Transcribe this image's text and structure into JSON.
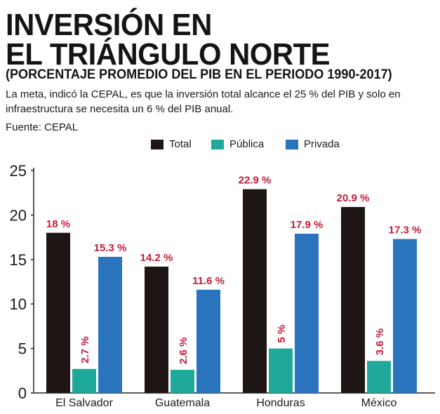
{
  "header": {
    "title_line1": "INVERSIÓN EN",
    "title_line2": "EL TRIÁNGULO NORTE",
    "subtitle": "(PORCENTAJE PROMEDIO DEL PIB  EN EL PERIODO 1990-2017)",
    "description": "La meta, indicó la CEPAL, es que la inversión total alcance el 25 % del PIB y solo en infraestructura se necesita un 6 % del PIB anual.",
    "source": "Fuente: CEPAL"
  },
  "colors": {
    "total": "#1e1614",
    "publica": "#1fa99a",
    "privada": "#2a74bd",
    "value_label": "#c41a3a"
  },
  "chart_data": {
    "type": "bar",
    "title": "INVERSIÓN EN EL TRIÁNGULO NORTE",
    "subtitle": "(PORCENTAJE PROMEDIO DEL PIB  EN EL PERIODO 1990-2017)",
    "categories": [
      "El Salvador",
      "Guatemala",
      "Honduras",
      "México"
    ],
    "series": [
      {
        "name": "Total",
        "values": [
          18,
          14.2,
          22.9,
          20.9
        ],
        "labels": [
          "18 %",
          "14.2 %",
          "22.9 %",
          "20.9 %"
        ]
      },
      {
        "name": "Pública",
        "values": [
          2.7,
          2.6,
          5,
          3.6
        ],
        "labels": [
          "2.7 %",
          "2.6 %",
          "5 %",
          "3.6 %"
        ]
      },
      {
        "name": "Privada",
        "values": [
          15.3,
          11.6,
          17.9,
          17.3
        ],
        "labels": [
          "15.3 %",
          "11.6 %",
          "17.9 %",
          "17.3 %"
        ]
      }
    ],
    "yticks": [
      "0",
      "5",
      "10",
      "15",
      "20",
      "25"
    ],
    "ylim": [
      0,
      25
    ],
    "xlabel": "",
    "ylabel": "",
    "grid": false,
    "legend_position": "top"
  }
}
